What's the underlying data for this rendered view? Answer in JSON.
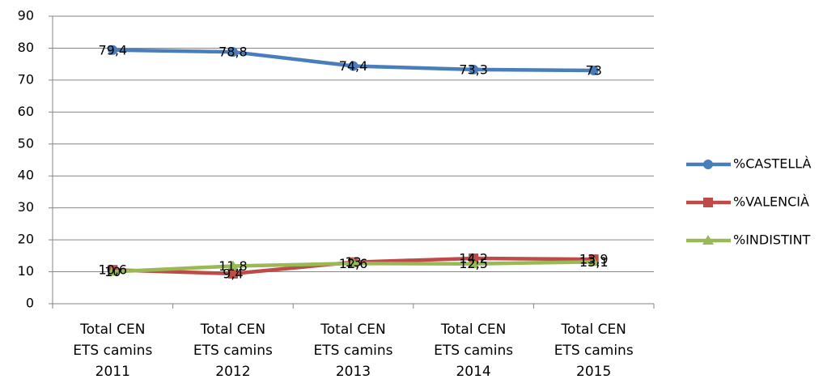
{
  "chart_data": {
    "type": "line",
    "categories": [
      "Total CEN ETS camins 2011",
      "Total CEN ETS camins 2012",
      "Total CEN ETS camins 2013",
      "Total CEN ETS camins 2014",
      "Total CEN ETS camins 2015"
    ],
    "series": [
      {
        "name": "%CASTELLÀ",
        "color": "#4a7ebb",
        "marker": "circle",
        "values": [
          79.4,
          78.8,
          74.4,
          73.3,
          73
        ],
        "value_labels": [
          "79,4",
          "78,8",
          "74,4",
          "73,3",
          "73"
        ]
      },
      {
        "name": "%VALENCIÀ",
        "color": "#be4b48",
        "marker": "square",
        "values": [
          10.6,
          9.4,
          13,
          14.2,
          13.9
        ],
        "value_labels": [
          "10,6",
          "9,4",
          "13",
          "14,2",
          "13,9"
        ]
      },
      {
        "name": "%INDISTINT",
        "color": "#98b954",
        "marker": "triangle",
        "values": [
          10,
          11.8,
          12.6,
          12.5,
          13.1
        ],
        "value_labels": [
          "10",
          "11,8",
          "12,6",
          "12,5",
          "13,1"
        ]
      }
    ],
    "ylim": [
      0,
      90
    ],
    "yticks": [
      0,
      10,
      20,
      30,
      40,
      50,
      60,
      70,
      80,
      90
    ],
    "grid": true,
    "legend": "right"
  }
}
